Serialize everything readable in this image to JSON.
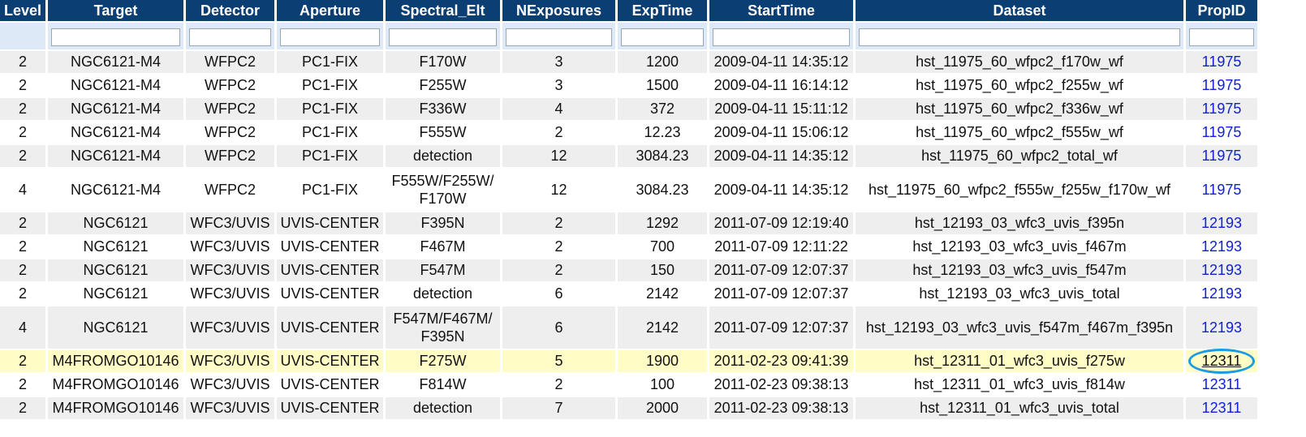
{
  "columns": [
    "Level",
    "Target",
    "Detector",
    "Aperture",
    "Spectral_Elt",
    "NExposures",
    "ExpTime",
    "StartTime",
    "Dataset",
    "PropID"
  ],
  "rows": [
    {
      "level": "2",
      "target": "NGC6121-M4",
      "detector": "WFPC2",
      "aperture": "PC1-FIX",
      "spectral": "F170W",
      "nexp": "3",
      "exptime": "1200",
      "start": "2009-04-11 14:35:12",
      "dataset": "hst_11975_60_wfpc2_f170w_wf",
      "propid": "11975"
    },
    {
      "level": "2",
      "target": "NGC6121-M4",
      "detector": "WFPC2",
      "aperture": "PC1-FIX",
      "spectral": "F255W",
      "nexp": "3",
      "exptime": "1500",
      "start": "2009-04-11 16:14:12",
      "dataset": "hst_11975_60_wfpc2_f255w_wf",
      "propid": "11975"
    },
    {
      "level": "2",
      "target": "NGC6121-M4",
      "detector": "WFPC2",
      "aperture": "PC1-FIX",
      "spectral": "F336W",
      "nexp": "4",
      "exptime": "372",
      "start": "2009-04-11 15:11:12",
      "dataset": "hst_11975_60_wfpc2_f336w_wf",
      "propid": "11975"
    },
    {
      "level": "2",
      "target": "NGC6121-M4",
      "detector": "WFPC2",
      "aperture": "PC1-FIX",
      "spectral": "F555W",
      "nexp": "2",
      "exptime": "12.23",
      "start": "2009-04-11 15:06:12",
      "dataset": "hst_11975_60_wfpc2_f555w_wf",
      "propid": "11975"
    },
    {
      "level": "2",
      "target": "NGC6121-M4",
      "detector": "WFPC2",
      "aperture": "PC1-FIX",
      "spectral": "detection",
      "nexp": "12",
      "exptime": "3084.23",
      "start": "2009-04-11 14:35:12",
      "dataset": "hst_11975_60_wfpc2_total_wf",
      "propid": "11975"
    },
    {
      "level": "4",
      "target": "NGC6121-M4",
      "detector": "WFPC2",
      "aperture": "PC1-FIX",
      "spectral": "F555W/F255W/ F170W",
      "nexp": "12",
      "exptime": "3084.23",
      "start": "2009-04-11 14:35:12",
      "dataset": "hst_11975_60_wfpc2_f555w_f255w_f170w_wf",
      "propid": "11975"
    },
    {
      "level": "2",
      "target": "NGC6121",
      "detector": "WFC3/UVIS",
      "aperture": "UVIS-CENTER",
      "spectral": "F395N",
      "nexp": "2",
      "exptime": "1292",
      "start": "2011-07-09 12:19:40",
      "dataset": "hst_12193_03_wfc3_uvis_f395n",
      "propid": "12193"
    },
    {
      "level": "2",
      "target": "NGC6121",
      "detector": "WFC3/UVIS",
      "aperture": "UVIS-CENTER",
      "spectral": "F467M",
      "nexp": "2",
      "exptime": "700",
      "start": "2011-07-09 12:11:22",
      "dataset": "hst_12193_03_wfc3_uvis_f467m",
      "propid": "12193"
    },
    {
      "level": "2",
      "target": "NGC6121",
      "detector": "WFC3/UVIS",
      "aperture": "UVIS-CENTER",
      "spectral": "F547M",
      "nexp": "2",
      "exptime": "150",
      "start": "2011-07-09 12:07:37",
      "dataset": "hst_12193_03_wfc3_uvis_f547m",
      "propid": "12193"
    },
    {
      "level": "2",
      "target": "NGC6121",
      "detector": "WFC3/UVIS",
      "aperture": "UVIS-CENTER",
      "spectral": "detection",
      "nexp": "6",
      "exptime": "2142",
      "start": "2011-07-09 12:07:37",
      "dataset": "hst_12193_03_wfc3_uvis_total",
      "propid": "12193"
    },
    {
      "level": "4",
      "target": "NGC6121",
      "detector": "WFC3/UVIS",
      "aperture": "UVIS-CENTER",
      "spectral": "F547M/F467M/ F395N",
      "nexp": "6",
      "exptime": "2142",
      "start": "2011-07-09 12:07:37",
      "dataset": "hst_12193_03_wfc3_uvis_f547m_f467m_f395n",
      "propid": "12193"
    },
    {
      "level": "2",
      "target": "M4FROMGO10146",
      "detector": "WFC3/UVIS",
      "aperture": "UVIS-CENTER",
      "spectral": "F275W",
      "nexp": "5",
      "exptime": "1900",
      "start": "2011-02-23 09:41:39",
      "dataset": "hst_12311_01_wfc3_uvis_f275w",
      "propid": "12311"
    },
    {
      "level": "2",
      "target": "M4FROMGO10146",
      "detector": "WFC3/UVIS",
      "aperture": "UVIS-CENTER",
      "spectral": "F814W",
      "nexp": "2",
      "exptime": "100",
      "start": "2011-02-23 09:38:13",
      "dataset": "hst_12311_01_wfc3_uvis_f814w",
      "propid": "12311"
    },
    {
      "level": "2",
      "target": "M4FROMGO10146",
      "detector": "WFC3/UVIS",
      "aperture": "UVIS-CENTER",
      "spectral": "detection",
      "nexp": "7",
      "exptime": "2000",
      "start": "2011-02-23 09:38:13",
      "dataset": "hst_12311_01_wfc3_uvis_total",
      "propid": "12311"
    }
  ],
  "colors": {
    "header_bg": "#0b3f74",
    "filter_bg": "#dde9f6",
    "selected_row_bg": "#fffcc6",
    "link": "#1020d8",
    "highlight_ring": "#1a9be6"
  }
}
